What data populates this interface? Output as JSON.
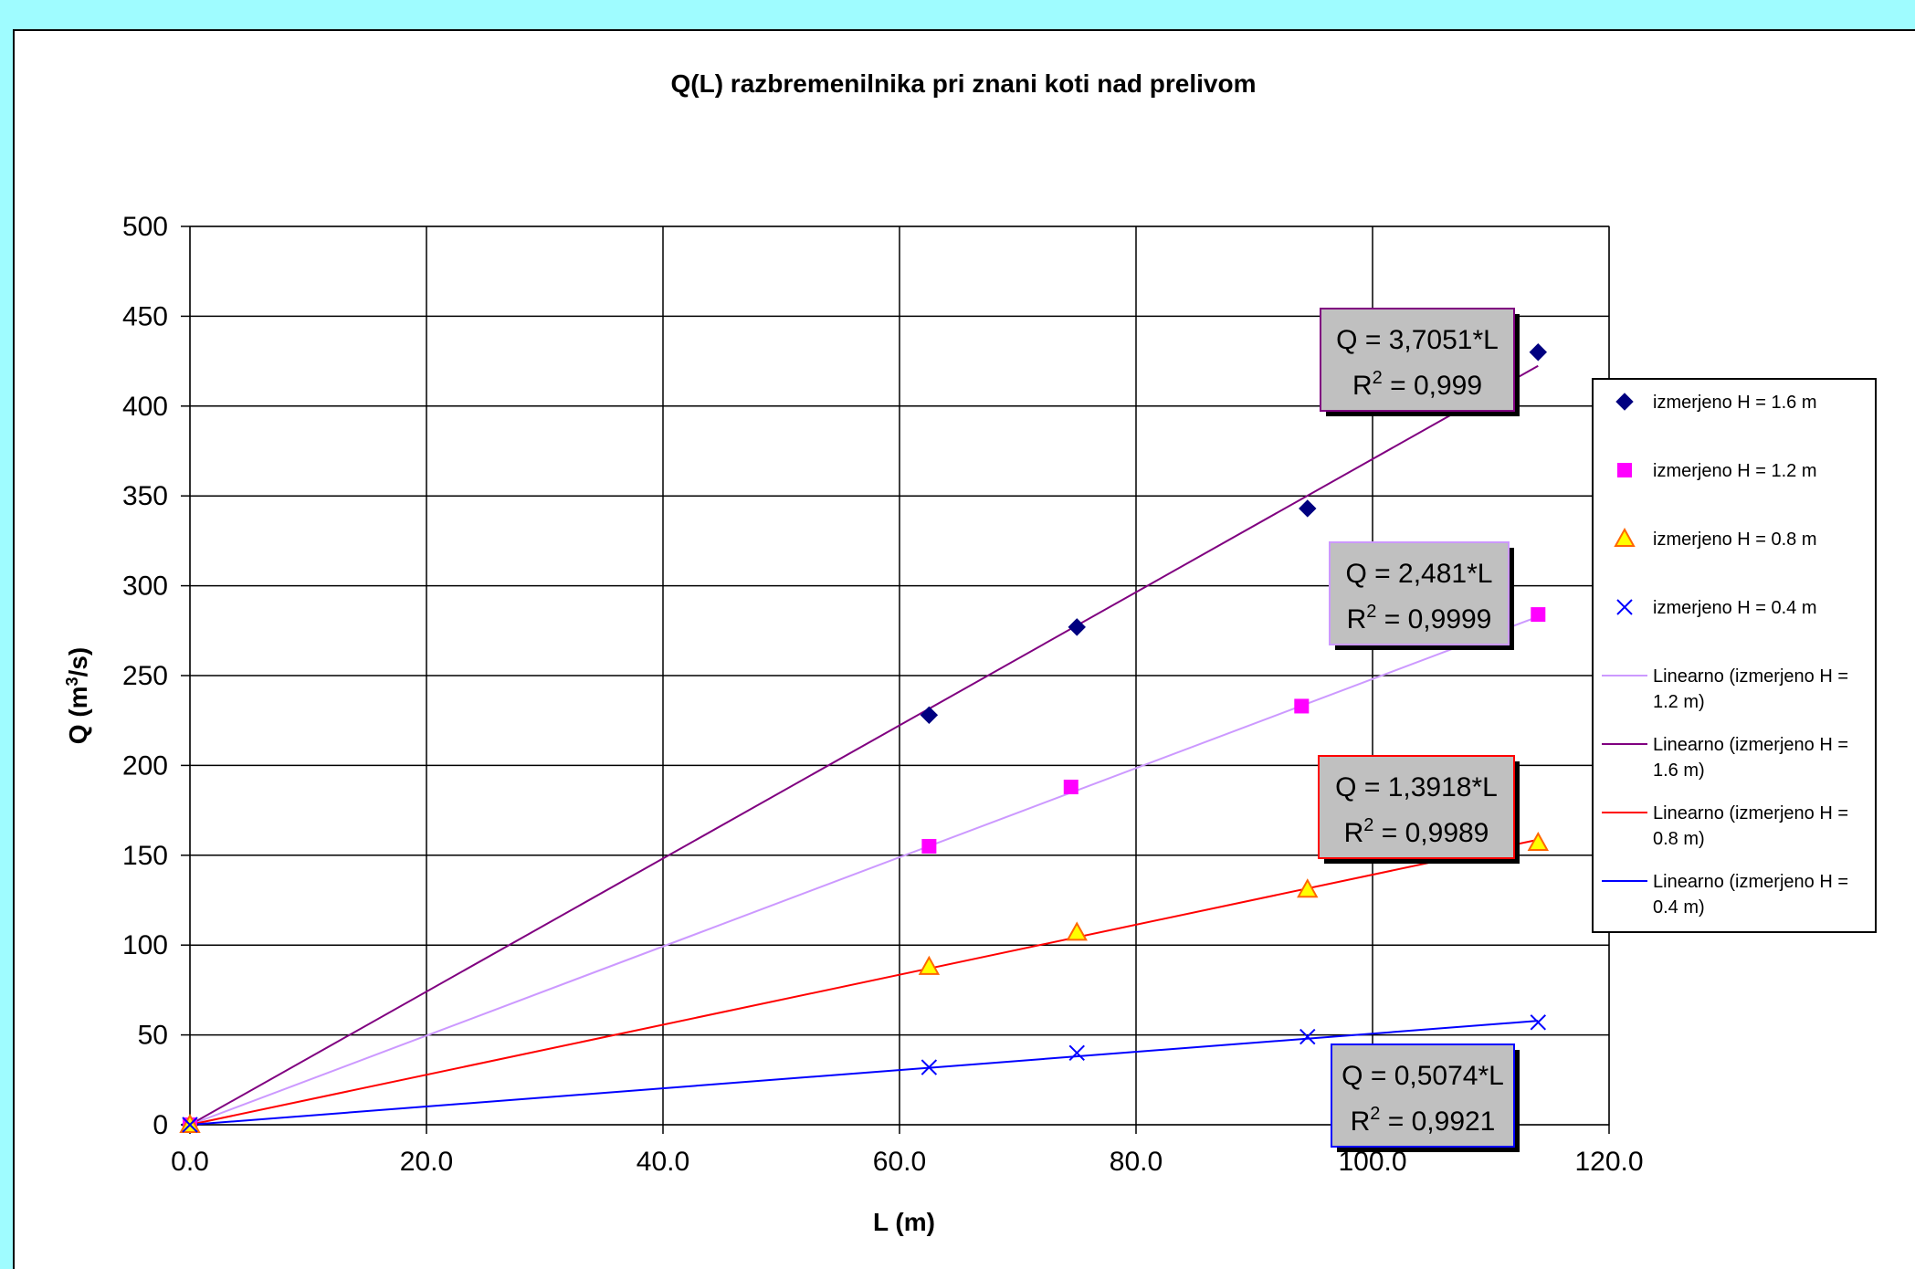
{
  "chart_data": {
    "type": "scatter",
    "title": "Q(L) razbremenilnika pri znani koti nad prelivom",
    "xlabel": "L (m)",
    "ylabel": "Q (m³/s)",
    "ylabel_base": "Q (m",
    "ylabel_sup": "3",
    "ylabel_tail": "/s)",
    "xlim": [
      0,
      120
    ],
    "ylim": [
      0,
      500
    ],
    "xticks": [
      "0.0",
      "20.0",
      "40.0",
      "60.0",
      "80.0",
      "100.0",
      "120.0"
    ],
    "yticks": [
      "0",
      "50",
      "100",
      "150",
      "200",
      "250",
      "300",
      "350",
      "400",
      "450",
      "500"
    ],
    "grid": true,
    "legend_position": "right",
    "series": [
      {
        "name": "izmerjeno H = 1.6 m",
        "marker": "diamond",
        "color": "#000080",
        "x": [
          0,
          62.5,
          75,
          94.5,
          114
        ],
        "y": [
          0,
          228,
          277,
          343,
          430
        ]
      },
      {
        "name": "izmerjeno H = 1.2 m",
        "marker": "square",
        "color": "#ff00ff",
        "x": [
          0,
          62.5,
          74.5,
          94,
          114
        ],
        "y": [
          0,
          155,
          188,
          233,
          284
        ]
      },
      {
        "name": "izmerjeno H = 0.8 m",
        "marker": "triangle",
        "color": "#ffff00",
        "edge": "#ff6600",
        "x": [
          0,
          62.5,
          75,
          94.5,
          114
        ],
        "y": [
          0,
          88,
          107,
          131,
          157
        ]
      },
      {
        "name": "izmerjeno H = 0.4 m",
        "marker": "x",
        "color": "#0000ff",
        "x": [
          0,
          62.5,
          75,
          94.5,
          114
        ],
        "y": [
          0,
          32,
          40,
          49,
          57
        ]
      }
    ],
    "trendlines": [
      {
        "legend": [
          "Linearno (izmerjeno H =",
          "1.2 m)"
        ],
        "color": "#cc99ff",
        "slope": 2.481,
        "xmax": 114
      },
      {
        "legend": [
          "Linearno (izmerjeno H =",
          "1.6 m)"
        ],
        "color": "#800080",
        "slope": 3.7051,
        "xmax": 114
      },
      {
        "legend": [
          "Linearno (izmerjeno H =",
          "0.8 m)"
        ],
        "color": "#ff0000",
        "slope": 1.3918,
        "xmax": 114
      },
      {
        "legend": [
          "Linearno (izmerjeno H =",
          "0.4 m)"
        ],
        "color": "#0000ff",
        "slope": 0.5074,
        "xmax": 114
      }
    ],
    "annotations": [
      {
        "eq": "Q = 3,7051*L",
        "r2_value": " = 0,999",
        "border": "#800080"
      },
      {
        "eq": "Q = 2,481*L",
        "r2_value": " = 0,9999",
        "border": "#cc99ff"
      },
      {
        "eq": "Q = 1,3918*L",
        "r2_value": " = 0,9989",
        "border": "#ff0000"
      },
      {
        "eq": "Q = 0,5074*L",
        "r2_value": " = 0,9921",
        "border": "#0000ff"
      }
    ]
  }
}
